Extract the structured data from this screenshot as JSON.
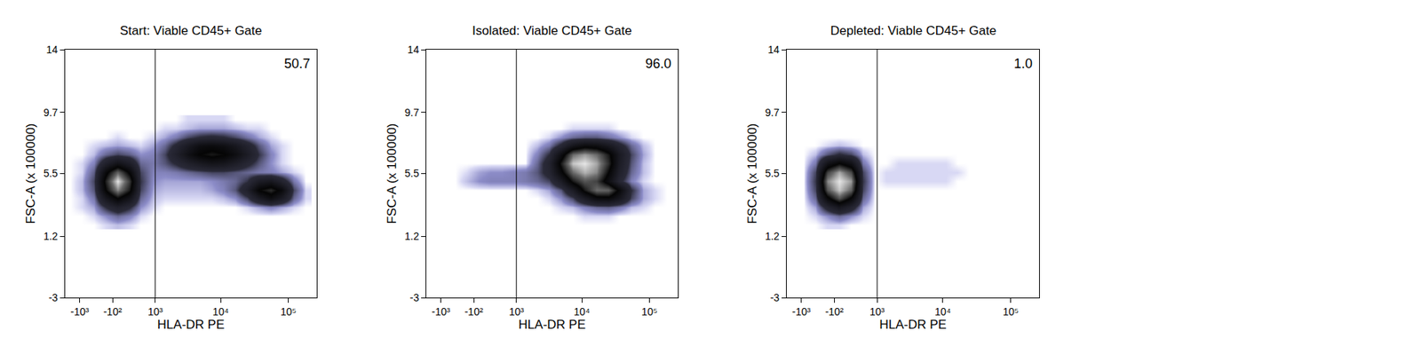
{
  "chart_data": [
    {
      "type": "heatmap",
      "title": "Start: Viable CD45+ Gate",
      "x_label": "HLA-DR PE",
      "y_label": "FSC-A (x 100000)",
      "xlim": [
        -1730,
        262144
      ],
      "xticks": [
        {
          "value": -1000,
          "label": "-10³"
        },
        {
          "value": -100,
          "label": "-10²"
        },
        {
          "value": 1000,
          "label": "10³"
        },
        {
          "value": 10000,
          "label": "10⁴"
        },
        {
          "value": 100000,
          "label": "10⁵"
        }
      ],
      "ylim": [
        -3,
        14
      ],
      "yticks": [
        -3,
        1.2,
        5.5,
        9.7,
        14
      ],
      "gate": 1000,
      "gate_percent": 50.7,
      "x": [
        -1430,
        -910,
        -530,
        -250,
        0,
        250,
        530,
        910,
        1430,
        2180,
        3280,
        4920,
        7350,
        11000,
        16400,
        24400,
        36400,
        54400,
        81100,
        121000,
        181000
      ],
      "y": [
        2.0,
        2.6,
        3.2,
        3.8,
        4.4,
        5.0,
        5.6,
        6.2,
        6.8,
        7.4,
        8.0,
        8.6,
        9.2
      ],
      "cells": [
        [
          0,
          0,
          0,
          1,
          2,
          1,
          0,
          0,
          0,
          0,
          0,
          0,
          0,
          0,
          0,
          0,
          0,
          0,
          0,
          0,
          0
        ],
        [
          0,
          0,
          1,
          4,
          8,
          5,
          1,
          0,
          0,
          0,
          0,
          0,
          0,
          0,
          0,
          0,
          0,
          0,
          0,
          0,
          0
        ],
        [
          0,
          1,
          3,
          15,
          25,
          16,
          4,
          1,
          0,
          0,
          0,
          0,
          0,
          0,
          0,
          1,
          3,
          5,
          3,
          1,
          0
        ],
        [
          0,
          1,
          6,
          35,
          55,
          38,
          8,
          2,
          1,
          1,
          1,
          1,
          1,
          2,
          4,
          12,
          30,
          45,
          30,
          8,
          1
        ],
        [
          0,
          2,
          10,
          55,
          85,
          60,
          12,
          3,
          2,
          2,
          2,
          2,
          3,
          5,
          10,
          25,
          55,
          65,
          48,
          12,
          1
        ],
        [
          0,
          2,
          12,
          62,
          100,
          68,
          14,
          4,
          3,
          3,
          3,
          3,
          4,
          6,
          8,
          14,
          30,
          35,
          22,
          6,
          0
        ],
        [
          0,
          1,
          9,
          50,
          78,
          52,
          12,
          5,
          5,
          6,
          8,
          10,
          12,
          12,
          10,
          8,
          6,
          5,
          3,
          1,
          0
        ],
        [
          0,
          1,
          5,
          25,
          40,
          28,
          8,
          6,
          10,
          16,
          25,
          32,
          38,
          36,
          28,
          18,
          10,
          4,
          1,
          0,
          0
        ],
        [
          0,
          0,
          2,
          8,
          12,
          9,
          4,
          5,
          12,
          25,
          42,
          55,
          60,
          56,
          45,
          30,
          14,
          5,
          1,
          0,
          0
        ],
        [
          0,
          0,
          1,
          2,
          3,
          2,
          1,
          3,
          8,
          18,
          32,
          45,
          48,
          44,
          35,
          22,
          10,
          3,
          1,
          0,
          0
        ],
        [
          0,
          0,
          0,
          0,
          1,
          0,
          0,
          1,
          3,
          6,
          12,
          16,
          18,
          16,
          12,
          7,
          3,
          1,
          0,
          0,
          0
        ],
        [
          0,
          0,
          0,
          0,
          0,
          0,
          0,
          0,
          1,
          1,
          2,
          3,
          3,
          3,
          2,
          1,
          1,
          0,
          0,
          0,
          0
        ],
        [
          0,
          0,
          0,
          0,
          0,
          0,
          0,
          0,
          0,
          0,
          1,
          1,
          1,
          1,
          0,
          0,
          0,
          0,
          0,
          0,
          0
        ]
      ]
    },
    {
      "type": "heatmap",
      "title": "Isolated: Viable CD45+ Gate",
      "x_label": "HLA-DR PE",
      "y_label": "FSC-A (x 100000)",
      "xlim": [
        -1730,
        262144
      ],
      "xticks": [
        {
          "value": -1000,
          "label": "-10³"
        },
        {
          "value": -100,
          "label": "-10²"
        },
        {
          "value": 1000,
          "label": "10³"
        },
        {
          "value": 10000,
          "label": "10⁴"
        },
        {
          "value": 100000,
          "label": "10⁵"
        }
      ],
      "ylim": [
        -3,
        14
      ],
      "yticks": [
        -3,
        1.2,
        5.5,
        9.7,
        14
      ],
      "gate": 1000,
      "gate_percent": {
        "value": 96,
        "label": "96.0"
      },
      "x": [
        -1430,
        -910,
        -530,
        -250,
        0,
        250,
        530,
        910,
        1430,
        2180,
        3280,
        4920,
        7350,
        11000,
        16400,
        24400,
        36400,
        54400,
        81100,
        121000,
        181000
      ],
      "y": [
        2.0,
        2.6,
        3.2,
        3.8,
        4.4,
        5.0,
        5.6,
        6.2,
        6.8,
        7.4,
        8.0,
        8.6,
        9.2
      ],
      "cells": [
        [
          0,
          0,
          0,
          0,
          0,
          0,
          0,
          0,
          0,
          0,
          0,
          0,
          0,
          0,
          0,
          0,
          0,
          0,
          0,
          0,
          0
        ],
        [
          0,
          0,
          0,
          0,
          0,
          0,
          0,
          0,
          0,
          0,
          0,
          0,
          0,
          1,
          1,
          1,
          0,
          0,
          0,
          0,
          0
        ],
        [
          0,
          0,
          0,
          0,
          0,
          0,
          0,
          0,
          0,
          0,
          0,
          1,
          2,
          5,
          8,
          9,
          6,
          2,
          1,
          0,
          0
        ],
        [
          0,
          0,
          0,
          0,
          0,
          0,
          0,
          0,
          0,
          0,
          1,
          4,
          12,
          30,
          48,
          50,
          35,
          12,
          3,
          1,
          0
        ],
        [
          0,
          0,
          0,
          0,
          0,
          0,
          0,
          0,
          0,
          1,
          3,
          10,
          30,
          60,
          80,
          78,
          50,
          15,
          3,
          1,
          0
        ],
        [
          0,
          0,
          0,
          2,
          4,
          5,
          5,
          5,
          6,
          8,
          12,
          30,
          60,
          75,
          70,
          45,
          18,
          5,
          1,
          0,
          0
        ],
        [
          0,
          0,
          0,
          1,
          3,
          4,
          4,
          5,
          6,
          10,
          20,
          50,
          80,
          92,
          85,
          55,
          25,
          8,
          2,
          0,
          0
        ],
        [
          0,
          0,
          0,
          0,
          0,
          0,
          0,
          0,
          0,
          8,
          22,
          60,
          95,
          100,
          90,
          65,
          30,
          10,
          2,
          0,
          0
        ],
        [
          0,
          0,
          0,
          0,
          0,
          0,
          0,
          0,
          0,
          5,
          15,
          45,
          80,
          88,
          80,
          60,
          32,
          12,
          3,
          0,
          0
        ],
        [
          0,
          0,
          0,
          0,
          0,
          0,
          0,
          0,
          0,
          2,
          6,
          18,
          38,
          48,
          45,
          35,
          20,
          8,
          2,
          0,
          0
        ],
        [
          0,
          0,
          0,
          0,
          0,
          0,
          0,
          0,
          0,
          0,
          1,
          4,
          8,
          10,
          10,
          7,
          4,
          1,
          0,
          0,
          0
        ],
        [
          0,
          0,
          0,
          0,
          0,
          0,
          0,
          0,
          0,
          0,
          0,
          0,
          1,
          1,
          1,
          1,
          0,
          0,
          0,
          0,
          0
        ],
        [
          0,
          0,
          0,
          0,
          0,
          0,
          0,
          0,
          0,
          0,
          0,
          0,
          0,
          0,
          0,
          0,
          0,
          0,
          0,
          0,
          0
        ]
      ]
    },
    {
      "type": "heatmap",
      "title": "Depleted: Viable CD45+ Gate",
      "x_label": "HLA-DR PE",
      "y_label": "FSC-A (x 100000)",
      "xlim": [
        -1730,
        262144
      ],
      "xticks": [
        {
          "value": -1000,
          "label": "-10³"
        },
        {
          "value": -100,
          "label": "-10²"
        },
        {
          "value": 1000,
          "label": "10³"
        },
        {
          "value": 10000,
          "label": "10⁴"
        },
        {
          "value": 100000,
          "label": "10⁵"
        }
      ],
      "ylim": [
        -3,
        14
      ],
      "yticks": [
        -3,
        1.2,
        5.5,
        9.7,
        14
      ],
      "gate": 1000,
      "gate_percent": {
        "value": 1,
        "label": "1.0"
      },
      "x": [
        -1430,
        -910,
        -530,
        -250,
        0,
        250,
        530,
        910,
        1430,
        2180,
        3280,
        4920,
        7350,
        11000,
        16400,
        24400,
        36400,
        54400,
        81100,
        121000,
        181000
      ],
      "y": [
        2.0,
        2.6,
        3.2,
        3.8,
        4.4,
        5.0,
        5.6,
        6.2,
        6.8,
        7.4,
        8.0,
        8.6,
        9.2
      ],
      "cells": [
        [
          0,
          0,
          0,
          1,
          1,
          0,
          0,
          0,
          0,
          0,
          0,
          0,
          0,
          0,
          0,
          0,
          0,
          0,
          0,
          0,
          0
        ],
        [
          0,
          0,
          1,
          4,
          8,
          4,
          1,
          0,
          0,
          0,
          0,
          0,
          0,
          0,
          0,
          0,
          0,
          0,
          0,
          0,
          0
        ],
        [
          0,
          0,
          3,
          20,
          35,
          22,
          3,
          0,
          0,
          0,
          0,
          0,
          0,
          0,
          0,
          0,
          0,
          0,
          0,
          0,
          0
        ],
        [
          0,
          0,
          8,
          50,
          75,
          52,
          8,
          0,
          0,
          0,
          0,
          0,
          0,
          0,
          0,
          0,
          0,
          0,
          0,
          0,
          0
        ],
        [
          0,
          0,
          12,
          75,
          95,
          78,
          12,
          0,
          0,
          0,
          0,
          0,
          0,
          0,
          0,
          0,
          0,
          0,
          0,
          0,
          0
        ],
        [
          0,
          0,
          14,
          85,
          100,
          88,
          14,
          0,
          1,
          1,
          1,
          1,
          1,
          1,
          0,
          0,
          0,
          0,
          0,
          0,
          0
        ],
        [
          0,
          0,
          12,
          70,
          90,
          72,
          12,
          0,
          1,
          1,
          1,
          1,
          1,
          1,
          1,
          0,
          0,
          0,
          0,
          0,
          0
        ],
        [
          0,
          0,
          6,
          40,
          55,
          42,
          6,
          0,
          0,
          1,
          1,
          1,
          1,
          1,
          0,
          0,
          0,
          0,
          0,
          0,
          0
        ],
        [
          0,
          0,
          2,
          10,
          16,
          12,
          2,
          0,
          0,
          0,
          0,
          0,
          0,
          0,
          0,
          0,
          0,
          0,
          0,
          0,
          0
        ],
        [
          0,
          0,
          0,
          1,
          2,
          1,
          0,
          0,
          0,
          0,
          0,
          0,
          0,
          0,
          0,
          0,
          0,
          0,
          0,
          0,
          0
        ],
        [
          0,
          0,
          0,
          0,
          0,
          0,
          0,
          0,
          0,
          0,
          0,
          0,
          0,
          0,
          0,
          0,
          0,
          0,
          0,
          0,
          0
        ],
        [
          0,
          0,
          0,
          0,
          0,
          0,
          0,
          0,
          0,
          0,
          0,
          0,
          0,
          0,
          0,
          0,
          0,
          0,
          0,
          0,
          0
        ],
        [
          0,
          0,
          0,
          0,
          0,
          0,
          0,
          0,
          0,
          0,
          0,
          0,
          0,
          0,
          0,
          0,
          0,
          0,
          0,
          0,
          0
        ]
      ]
    }
  ]
}
